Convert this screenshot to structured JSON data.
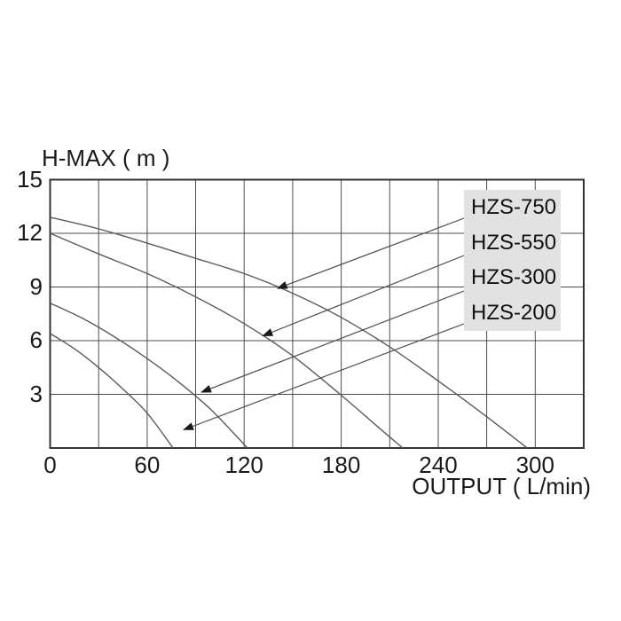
{
  "title": "H-MAX ( m )",
  "chart_data": {
    "type": "line",
    "title": "H-MAX ( m )",
    "xlabel": "OUTPUT ( L/min)",
    "ylabel": "H-MAX ( m )",
    "x_range": [
      0,
      330
    ],
    "y_range": [
      0,
      15
    ],
    "x_grid_step": 30,
    "y_grid_step": 3,
    "grid": true,
    "legend_position": "top-right",
    "x_ticks": [
      {
        "label": "0",
        "value": 0
      },
      {
        "label": "60",
        "value": 60
      },
      {
        "label": "120",
        "value": 120
      },
      {
        "label": "180",
        "value": 180
      },
      {
        "label": "240",
        "value": 240
      },
      {
        "label": "300",
        "value": 300
      }
    ],
    "y_ticks": [
      {
        "label": "15",
        "value": 15
      },
      {
        "label": "12",
        "value": 12
      },
      {
        "label": "9",
        "value": 9
      },
      {
        "label": "6",
        "value": 6
      },
      {
        "label": "3",
        "value": 3
      }
    ],
    "series": [
      {
        "name": "HZS-750",
        "points": [
          [
            0,
            12.9
          ],
          [
            30,
            12.25
          ],
          [
            60,
            11.45
          ],
          [
            90,
            10.6
          ],
          [
            120,
            9.75
          ],
          [
            150,
            8.65
          ],
          [
            180,
            7.3
          ],
          [
            210,
            5.65
          ],
          [
            240,
            3.75
          ],
          [
            270,
            1.75
          ],
          [
            295,
            0
          ]
        ],
        "arrow_point": [
          140,
          8.9
        ]
      },
      {
        "name": "HZS-550",
        "points": [
          [
            0,
            12.0
          ],
          [
            30,
            10.85
          ],
          [
            60,
            9.75
          ],
          [
            90,
            8.45
          ],
          [
            120,
            6.95
          ],
          [
            150,
            5.15
          ],
          [
            180,
            2.95
          ],
          [
            205,
            1.0
          ],
          [
            218,
            0
          ]
        ],
        "arrow_point": [
          131,
          6.25
        ]
      },
      {
        "name": "HZS-300",
        "points": [
          [
            0,
            8.1
          ],
          [
            20,
            7.25
          ],
          [
            40,
            6.2
          ],
          [
            60,
            5.0
          ],
          [
            80,
            3.65
          ],
          [
            100,
            2.1
          ],
          [
            122,
            0
          ]
        ],
        "arrow_point": [
          93,
          3.1
        ]
      },
      {
        "name": "HZS-200",
        "points": [
          [
            0,
            6.4
          ],
          [
            15,
            5.55
          ],
          [
            30,
            4.5
          ],
          [
            45,
            3.3
          ],
          [
            60,
            1.95
          ],
          [
            76,
            0
          ]
        ],
        "arrow_point": [
          82,
          1.0
        ]
      }
    ],
    "colors": {
      "curve": "#5a5a5a",
      "grid": "#4d4d4d",
      "border": "#333333",
      "legend_bg": "#e2e2e2",
      "text": "#1a1a1a",
      "arrow": "#1a1a1a"
    }
  }
}
